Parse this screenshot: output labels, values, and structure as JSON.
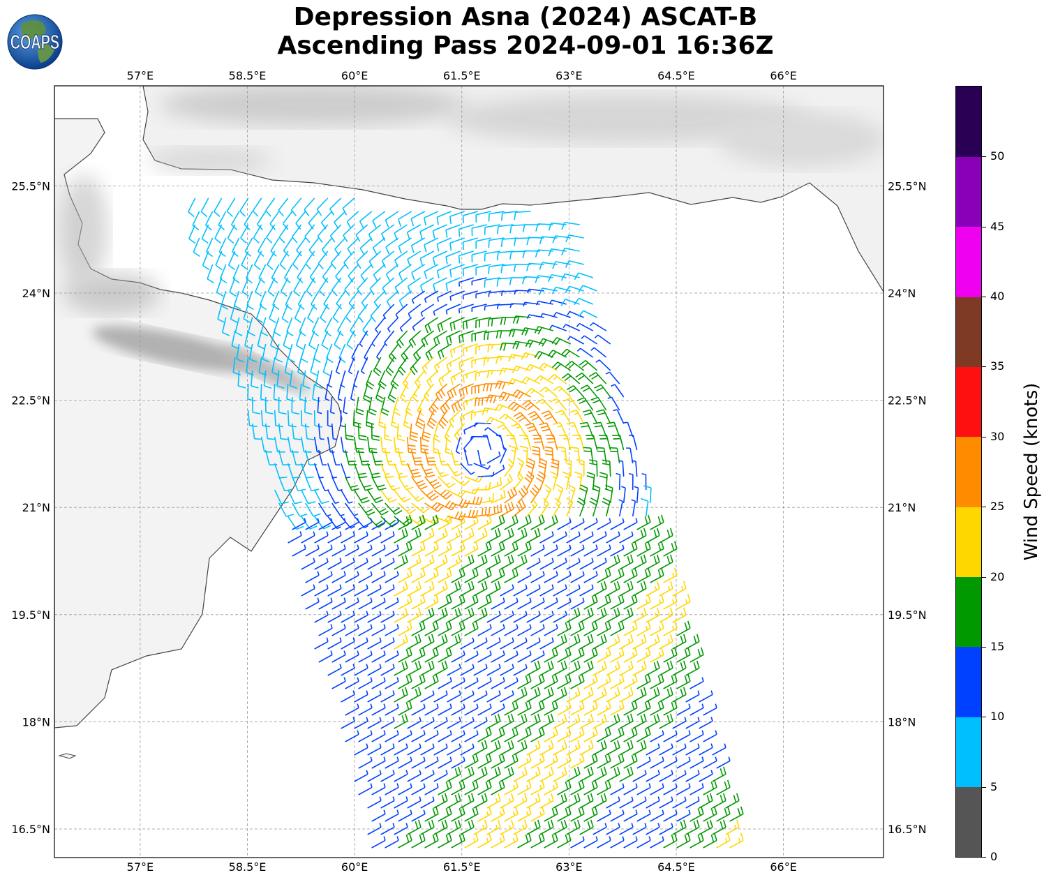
{
  "title": {
    "line1": "Depression Asna (2024) ASCAT-B",
    "line2": "Ascending Pass 2024-09-01 16:36Z"
  },
  "logo": {
    "text": "COAPS",
    "icon": "globe-logo-icon"
  },
  "map": {
    "projection": "plate-carree",
    "lon_range": [
      55.8,
      67.4
    ],
    "lat_range": [
      16.1,
      26.9
    ],
    "lon_ticks": [
      "57°E",
      "58.5°E",
      "60°E",
      "61.5°E",
      "63°E",
      "64.5°E",
      "66°E"
    ],
    "lon_tick_values": [
      57,
      58.5,
      60,
      61.5,
      63,
      64.5,
      66
    ],
    "lat_ticks": [
      "25.5°N",
      "24°N",
      "22.5°N",
      "21°N",
      "19.5°N",
      "18°N",
      "16.5°N"
    ],
    "lat_tick_values": [
      25.5,
      24,
      22.5,
      21,
      19.5,
      18,
      16.5
    ],
    "grid": true,
    "land_shading": "grayscale terrain",
    "coastline_color": "#444444",
    "storm_center": {
      "lon": 61.8,
      "lat": 21.8
    },
    "swath_corners": [
      [
        57.6,
        25.5
      ],
      [
        63.2,
        25.1
      ],
      [
        65.4,
        16.2
      ],
      [
        60.2,
        16.2
      ],
      [
        58.9,
        21.0
      ]
    ],
    "plot_type": "wind barbs"
  },
  "colorbar": {
    "label": "Wind Speed (knots)",
    "ticks": [
      "0",
      "5",
      "10",
      "15",
      "20",
      "25",
      "30",
      "35",
      "40",
      "45",
      "50"
    ],
    "bounds": [
      0,
      5,
      10,
      15,
      20,
      25,
      30,
      35,
      40,
      45,
      50,
      55
    ],
    "colors": [
      "#555555",
      "#00bfff",
      "#0040ff",
      "#009900",
      "#ffd700",
      "#ff8c00",
      "#ff1010",
      "#7f3a25",
      "#f000f0",
      "#8a00b8",
      "#2a0055"
    ]
  }
}
